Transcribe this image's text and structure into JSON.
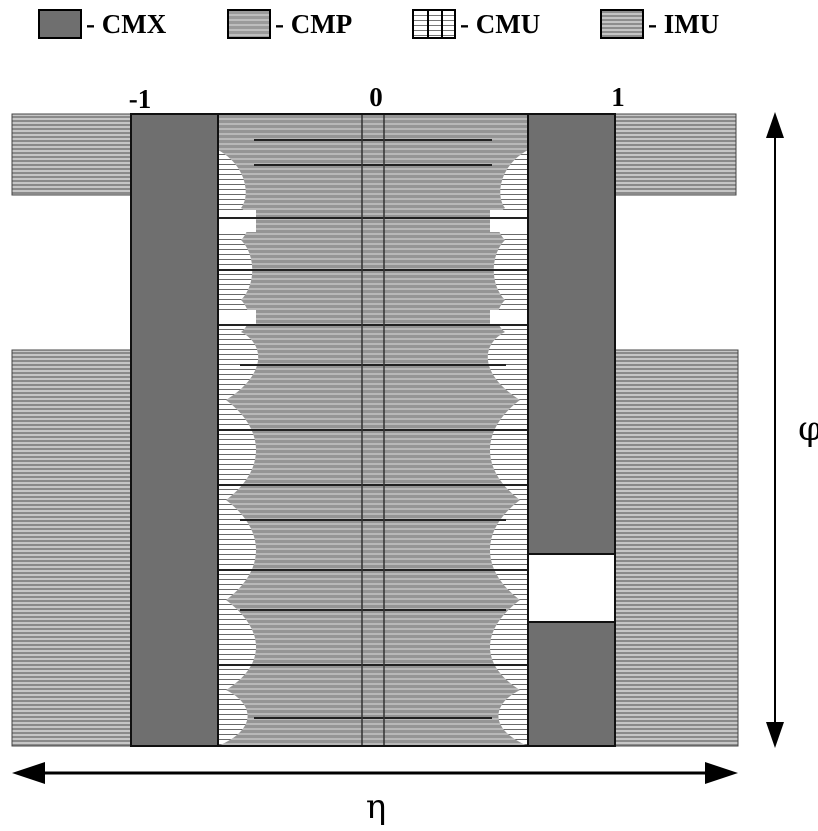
{
  "legend": {
    "items": [
      {
        "key": "cmx",
        "label": "- CMX"
      },
      {
        "key": "cmp",
        "label": "- CMP"
      },
      {
        "key": "cmu",
        "label": "- CMU"
      },
      {
        "key": "imu",
        "label": "- IMU"
      }
    ]
  },
  "eta_ticks": {
    "left": "-1",
    "center": "0",
    "right": "1"
  },
  "axes": {
    "horizontal_label": "η",
    "vertical_label": "φ"
  }
}
